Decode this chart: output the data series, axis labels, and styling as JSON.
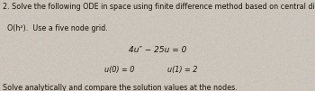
{
  "background_color": "#ccc5bc",
  "number": "2.",
  "line1": "Solve the following ODE in space using finite difference method based on central differences with error",
  "line2": "O(h²).  Use a five node grid.",
  "eq1": "4u″ − 25u = 0",
  "bc1": "u(0) = 0",
  "bc2": "u(1) = 2",
  "line_last": "Solve analytically and compare the solution values at the nodes.",
  "text_color": "#1a1208",
  "font_size_body": 5.8,
  "font_size_eq": 6.5
}
